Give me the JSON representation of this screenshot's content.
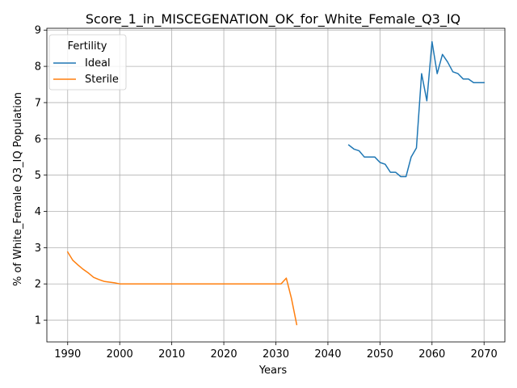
{
  "chart_data": {
    "type": "line",
    "title": "Score_1_in_MISCEGENATION_OK_for_White_Female_Q3_IQ",
    "xlabel": "Years",
    "ylabel": "% of White_Female Q3_IQ Population",
    "xlim": [
      1986,
      2074
    ],
    "ylim": [
      0.4,
      9.05
    ],
    "xticks": [
      1990,
      2000,
      2010,
      2020,
      2030,
      2040,
      2050,
      2060,
      2070
    ],
    "yticks": [
      1,
      2,
      3,
      4,
      5,
      6,
      7,
      8,
      9
    ],
    "grid": true,
    "legend": {
      "title": "Fertility",
      "position": "top-left"
    },
    "series": [
      {
        "name": "Ideal",
        "color": "#1f77b4",
        "x": [
          2044,
          2045,
          2046,
          2047,
          2048,
          2049,
          2050,
          2051,
          2052,
          2053,
          2054,
          2055,
          2056,
          2057,
          2058,
          2059,
          2060,
          2061,
          2062,
          2063,
          2064,
          2065,
          2066,
          2067,
          2068,
          2069,
          2070
        ],
        "y": [
          5.83,
          5.72,
          5.67,
          5.5,
          5.5,
          5.5,
          5.35,
          5.3,
          5.08,
          5.08,
          4.96,
          4.96,
          5.5,
          5.75,
          7.8,
          7.05,
          8.68,
          7.8,
          8.33,
          8.12,
          7.85,
          7.8,
          7.65,
          7.65,
          7.55,
          7.55,
          7.55
        ]
      },
      {
        "name": "Sterile",
        "color": "#ff7f0e",
        "x": [
          1990,
          1991,
          1992,
          1993,
          1994,
          1995,
          1996,
          1997,
          1998,
          1999,
          2000,
          2005,
          2010,
          2015,
          2020,
          2025,
          2030,
          2031,
          2032,
          2033,
          2034
        ],
        "y": [
          2.88,
          2.65,
          2.52,
          2.4,
          2.3,
          2.18,
          2.12,
          2.07,
          2.05,
          2.03,
          2.0,
          2.0,
          2.0,
          2.0,
          2.0,
          2.0,
          2.0,
          2.0,
          2.16,
          1.6,
          0.88
        ]
      }
    ]
  }
}
